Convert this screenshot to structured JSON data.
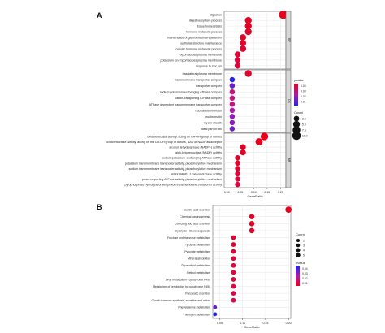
{
  "chart_data": [
    {
      "panel": "A",
      "type": "scatter",
      "xlabel": "GeneRatio",
      "xlim": [
        -0.01,
        0.22
      ],
      "xticks": [
        "0.00",
        "0.05",
        "0.10",
        "0.15",
        "0.20"
      ],
      "xtick_values": [
        0,
        0.05,
        0.1,
        0.15,
        0.2
      ],
      "grid": true,
      "facets": [
        "BP",
        "CC",
        "MF"
      ],
      "legend": {
        "position": "right",
        "color_title": "pvalue",
        "color_ticks": [
          "0.04",
          "0.03",
          "0.02",
          "0.01"
        ],
        "size_title": "Count",
        "size_ticks": [
          "2.5",
          "5.0",
          "7.5",
          "10.0"
        ]
      },
      "points": [
        {
          "facet": "BP",
          "term": "digestion",
          "gene_ratio": 0.21,
          "count": 10,
          "pvalue": 0.001
        },
        {
          "facet": "BP",
          "term": "digestive system process",
          "gene_ratio": 0.08,
          "count": 5,
          "pvalue": 0.002
        },
        {
          "facet": "BP",
          "term": "tissue homeostasis",
          "gene_ratio": 0.08,
          "count": 5,
          "pvalue": 0.002
        },
        {
          "facet": "BP",
          "term": "hormone metabolic process",
          "gene_ratio": 0.08,
          "count": 5,
          "pvalue": 0.003
        },
        {
          "facet": "BP",
          "term": "maintenance of gastrointestinal epithelium",
          "gene_ratio": 0.06,
          "count": 4,
          "pvalue": 0.003
        },
        {
          "facet": "BP",
          "term": "epithelial structure maintenance",
          "gene_ratio": 0.06,
          "count": 4,
          "pvalue": 0.003
        },
        {
          "facet": "BP",
          "term": "cellular hormone metabolic process",
          "gene_ratio": 0.06,
          "count": 4,
          "pvalue": 0.004
        },
        {
          "facet": "BP",
          "term": "export across plasma membrane",
          "gene_ratio": 0.04,
          "count": 3,
          "pvalue": 0.004
        },
        {
          "facet": "BP",
          "term": "potassium ion import across plasma membrane",
          "gene_ratio": 0.04,
          "count": 3,
          "pvalue": 0.005
        },
        {
          "facet": "BP",
          "term": "response to zinc ion",
          "gene_ratio": 0.04,
          "count": 3,
          "pvalue": 0.005
        },
        {
          "facet": "CC",
          "term": "basolateral plasma membrane",
          "gene_ratio": 0.08,
          "count": 5,
          "pvalue": 0.004
        },
        {
          "facet": "CC",
          "term": "transmembrane transporter complex",
          "gene_ratio": 0.02,
          "count": 2,
          "pvalue": 0.04
        },
        {
          "facet": "CC",
          "term": "transporter complex",
          "gene_ratio": 0.02,
          "count": 2,
          "pvalue": 0.03
        },
        {
          "facet": "CC",
          "term": "sodium:potassium-exchanging ATPase complex",
          "gene_ratio": 0.02,
          "count": 2,
          "pvalue": 0.015
        },
        {
          "facet": "CC",
          "term": "cation-transporting ATPase complex",
          "gene_ratio": 0.02,
          "count": 2,
          "pvalue": 0.015
        },
        {
          "facet": "CC",
          "term": "ATPase dependent transmembrane transporter complex",
          "gene_ratio": 0.02,
          "count": 2,
          "pvalue": 0.015
        },
        {
          "facet": "CC",
          "term": "nuclear euchromatin",
          "gene_ratio": 0.02,
          "count": 2,
          "pvalue": 0.02
        },
        {
          "facet": "CC",
          "term": "euchromatin",
          "gene_ratio": 0.02,
          "count": 2,
          "pvalue": 0.025
        },
        {
          "facet": "CC",
          "term": "myelin sheath",
          "gene_ratio": 0.02,
          "count": 2,
          "pvalue": 0.025
        },
        {
          "facet": "CC",
          "term": "basal part of cell",
          "gene_ratio": 0.02,
          "count": 2,
          "pvalue": 0.03
        },
        {
          "facet": "MF",
          "term": "oxidoreductase activity, acting on CH-OH group of donors",
          "gene_ratio": 0.14,
          "count": 7,
          "pvalue": 0.001
        },
        {
          "facet": "MF",
          "term": "oxidoreductase activity, acting on the CH-OH group of donors, NAD or NADP as acceptor",
          "gene_ratio": 0.12,
          "count": 6,
          "pvalue": 0.001
        },
        {
          "facet": "MF",
          "term": "alcohol dehydrogenase (NADP+) activity",
          "gene_ratio": 0.06,
          "count": 3,
          "pvalue": 0.002
        },
        {
          "facet": "MF",
          "term": "aldo-keto reductase (NADP) activity",
          "gene_ratio": 0.06,
          "count": 3,
          "pvalue": 0.002
        },
        {
          "facet": "MF",
          "term": "sodium:potassium-exchanging ATPase activity",
          "gene_ratio": 0.04,
          "count": 2,
          "pvalue": 0.003
        },
        {
          "facet": "MF",
          "term": "potassium transmembrane transporter activity, phosphorylative mechanism",
          "gene_ratio": 0.04,
          "count": 2,
          "pvalue": 0.003
        },
        {
          "facet": "MF",
          "term": "sodium transmembrane transporter activity, phosphorylative mechanism",
          "gene_ratio": 0.04,
          "count": 2,
          "pvalue": 0.004
        },
        {
          "facet": "MF",
          "term": "alditol:NADP+ 1-oxidoreductase activity",
          "gene_ratio": 0.04,
          "count": 2,
          "pvalue": 0.004
        },
        {
          "facet": "MF",
          "term": "proton-exporting ATPase activity, phosphorylative mechanism",
          "gene_ratio": 0.04,
          "count": 2,
          "pvalue": 0.005
        },
        {
          "facet": "MF",
          "term": "pyrophosphate hydrolysis-driven proton transmembrane transporter activity",
          "gene_ratio": 0.04,
          "count": 2,
          "pvalue": 0.005
        }
      ]
    },
    {
      "panel": "B",
      "type": "scatter",
      "xlabel": "GeneRatio",
      "xlim": [
        0.035,
        0.205
      ],
      "xticks": [
        "0.05",
        "0.10",
        "0.15",
        "0.20"
      ],
      "xtick_values": [
        0.05,
        0.1,
        0.15,
        0.2
      ],
      "grid": true,
      "legend": {
        "position": "right",
        "size_title": "Count",
        "size_ticks": [
          "2",
          "3",
          "4",
          "5"
        ],
        "color_title": "pvalue",
        "color_ticks": [
          "0.04",
          "0.03",
          "0.02",
          "0.01"
        ]
      },
      "points": [
        {
          "term": "Gastric acid secretion",
          "gene_ratio": 0.2,
          "count": 5,
          "pvalue": 0.001
        },
        {
          "term": "Chemical carcinogenesis",
          "gene_ratio": 0.12,
          "count": 3,
          "pvalue": 0.002
        },
        {
          "term": "Collecting duct acid secretion",
          "gene_ratio": 0.12,
          "count": 3,
          "pvalue": 0.002
        },
        {
          "term": "Glycolysis / Gluconeogenesis",
          "gene_ratio": 0.12,
          "count": 3,
          "pvalue": 0.003
        },
        {
          "term": "Fructose and mannose metabolism",
          "gene_ratio": 0.08,
          "count": 2,
          "pvalue": 0.004
        },
        {
          "term": "Tyrosine metabolism",
          "gene_ratio": 0.08,
          "count": 2,
          "pvalue": 0.004
        },
        {
          "term": "Pyruvate metabolism",
          "gene_ratio": 0.08,
          "count": 2,
          "pvalue": 0.004
        },
        {
          "term": "Mineral absorption",
          "gene_ratio": 0.08,
          "count": 2,
          "pvalue": 0.005
        },
        {
          "term": "Glycerolipid metabolism",
          "gene_ratio": 0.08,
          "count": 2,
          "pvalue": 0.005
        },
        {
          "term": "Retinol metabolism",
          "gene_ratio": 0.08,
          "count": 2,
          "pvalue": 0.005
        },
        {
          "term": "Drug metabolism - cytochrome P450",
          "gene_ratio": 0.08,
          "count": 2,
          "pvalue": 0.006
        },
        {
          "term": "Metabolism of xenobiotics by cytochrome P450",
          "gene_ratio": 0.08,
          "count": 2,
          "pvalue": 0.006
        },
        {
          "term": "Pancreatic secretion",
          "gene_ratio": 0.08,
          "count": 2,
          "pvalue": 0.007
        },
        {
          "term": "Growth hormone synthesis, secretion and action",
          "gene_ratio": 0.08,
          "count": 2,
          "pvalue": 0.008
        },
        {
          "term": "Phenylalanine metabolism",
          "gene_ratio": 0.04,
          "count": 1,
          "pvalue": 0.03
        },
        {
          "term": "Nitrogen metabolism",
          "gene_ratio": 0.04,
          "count": 1,
          "pvalue": 0.04
        }
      ]
    }
  ]
}
